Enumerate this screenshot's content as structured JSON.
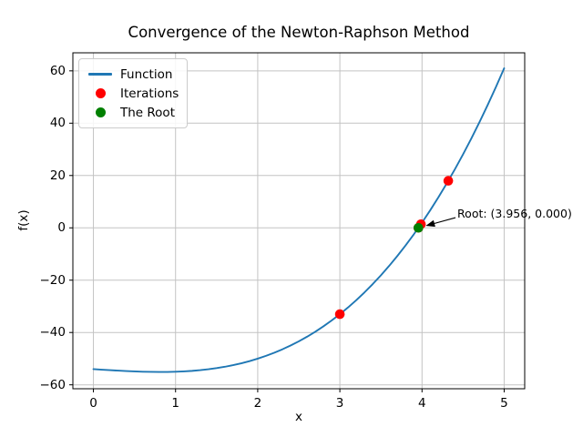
{
  "figure": {
    "background": "#ffffff"
  },
  "chart_data": {
    "type": "line",
    "title": "Convergence of the Newton-Raphson Method",
    "xlabel": "x",
    "ylabel": "f(x)",
    "xlim": [
      -0.25,
      5.25
    ],
    "ylim": [
      -61.5,
      66.9
    ],
    "grid": true,
    "legend_position": "upper left",
    "x_ticks": [
      {
        "value": 0,
        "label": "0"
      },
      {
        "value": 1,
        "label": "1"
      },
      {
        "value": 2,
        "label": "2"
      },
      {
        "value": 3,
        "label": "3"
      },
      {
        "value": 4,
        "label": "4"
      },
      {
        "value": 5,
        "label": "5"
      }
    ],
    "y_ticks": [
      {
        "value": 60,
        "label": "60"
      },
      {
        "value": 40,
        "label": "40"
      },
      {
        "value": 20,
        "label": "20"
      },
      {
        "value": 0,
        "label": "0"
      },
      {
        "value": -20,
        "label": "−20"
      },
      {
        "value": -40,
        "label": "−40"
      },
      {
        "value": -60,
        "label": "−60"
      }
    ],
    "series": [
      {
        "name": "Function",
        "kind": "line",
        "color": "#1f77b4",
        "x": [
          0,
          0.1,
          0.2,
          0.3,
          0.4,
          0.5,
          0.6,
          0.7,
          0.8,
          0.9,
          1.0,
          1.1,
          1.2,
          1.3,
          1.4,
          1.5,
          1.6,
          1.7,
          1.8,
          1.9,
          2.0,
          2.1,
          2.2,
          2.3,
          2.4,
          2.5,
          2.6,
          2.7,
          2.8,
          2.9,
          3.0,
          3.1,
          3.2,
          3.3,
          3.4,
          3.5,
          3.6,
          3.7,
          3.8,
          3.9,
          4.0,
          4.1,
          4.2,
          4.3,
          4.4,
          4.5,
          4.6,
          4.7,
          4.8,
          4.9,
          5.0
        ],
        "y": [
          -54.0,
          -54.199,
          -54.392,
          -54.573,
          -54.736,
          -54.875,
          -54.984,
          -55.057,
          -55.088,
          -55.071,
          -55.0,
          -54.869,
          -54.672,
          -54.403,
          -54.056,
          -53.625,
          -53.104,
          -52.487,
          -51.768,
          -50.941,
          -50.0,
          -48.939,
          -47.752,
          -46.433,
          -44.976,
          -43.375,
          -41.624,
          -39.717,
          -37.648,
          -35.411,
          -33.0,
          -30.409,
          -27.632,
          -24.663,
          -21.496,
          -18.125,
          -14.544,
          -10.747,
          -6.728,
          -2.481,
          2.0,
          6.721,
          11.688,
          16.907,
          22.384,
          28.125,
          34.136,
          40.423,
          46.992,
          53.849,
          61.0
        ]
      },
      {
        "name": "Iterations",
        "kind": "scatter",
        "color": "#ff0000",
        "points": [
          [
            3.0,
            -33.0
          ],
          [
            4.32,
            17.982
          ],
          [
            3.987,
            1.399
          ],
          [
            3.956,
            0.013
          ]
        ]
      },
      {
        "name": "The Root",
        "kind": "scatter",
        "color": "#008000",
        "points": [
          [
            3.956,
            0.0
          ]
        ]
      }
    ],
    "annotation": {
      "text": "Root: (3.956, 0.000)",
      "point": [
        3.956,
        0.0
      ],
      "text_pos": [
        4.43,
        3.2
      ]
    }
  },
  "legend": {
    "items": [
      {
        "label": "Function",
        "marker": "line",
        "color": "#1f77b4"
      },
      {
        "label": "Iterations",
        "marker": "dot",
        "color": "#ff0000"
      },
      {
        "label": "The Root",
        "marker": "dot",
        "color": "#008000"
      }
    ]
  },
  "style": {
    "grid_color": "#c3c3c3",
    "spine_color": "#000000",
    "tick_color": "#000000",
    "arrow_color": "#000000"
  }
}
